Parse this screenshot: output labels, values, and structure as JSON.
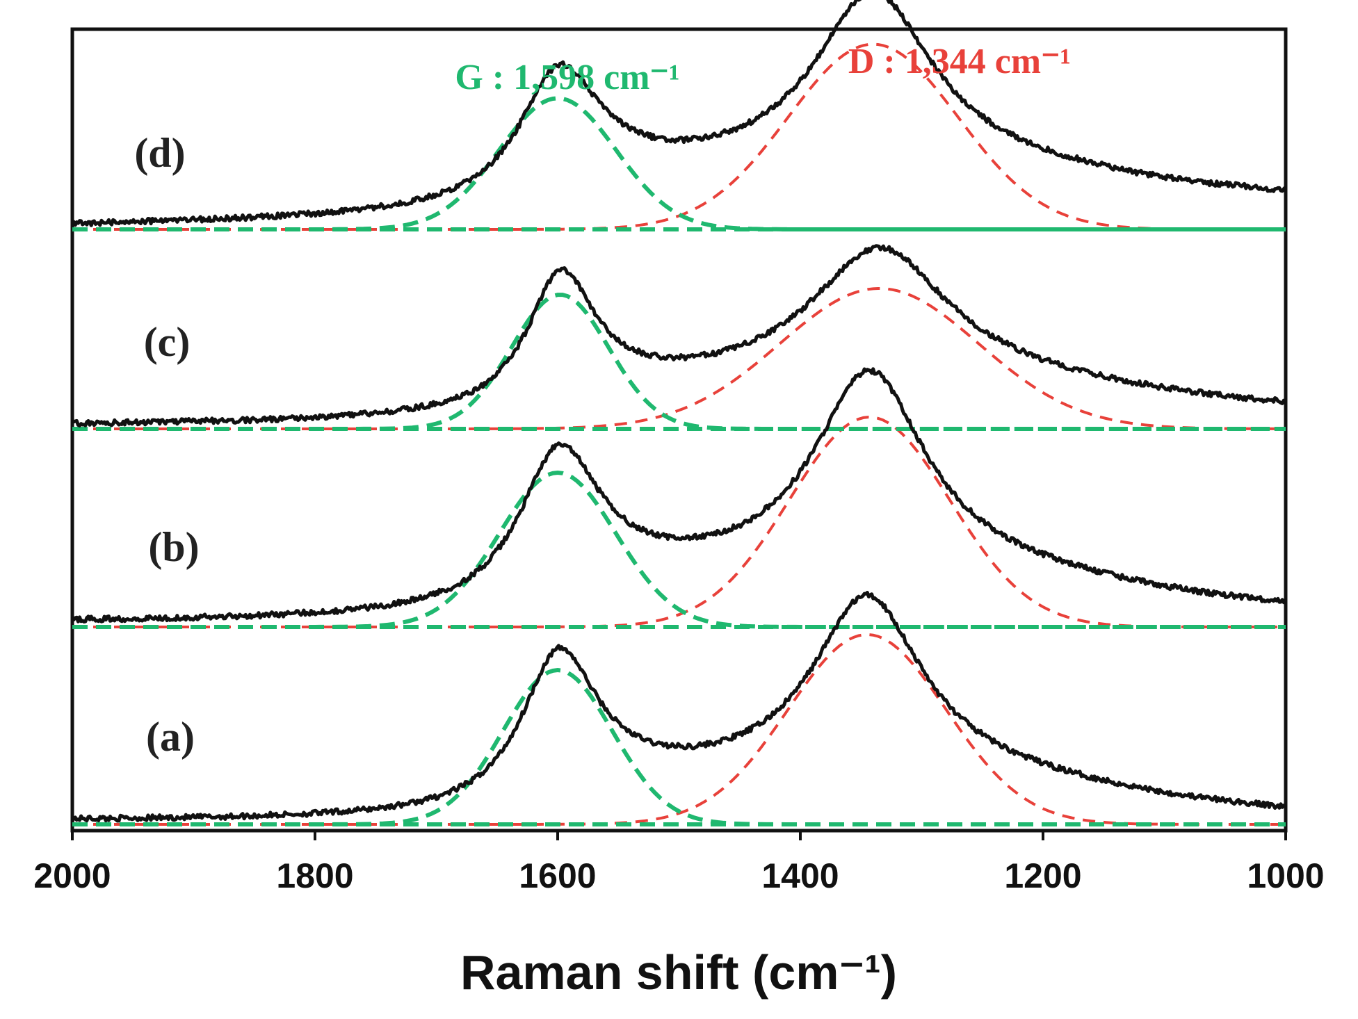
{
  "chart_data": {
    "type": "line",
    "xlabel": "Raman shift (cm⁻¹)",
    "xlim": [
      2000,
      1000
    ],
    "x_ticks": [
      2000,
      1800,
      1600,
      1400,
      1200,
      1000
    ],
    "x_tick_labels": [
      "2000",
      "1800",
      "1600",
      "1400",
      "1200",
      "1000"
    ],
    "y_axis": "stacked offset spectra, arbitrary intensity (no tick labels)",
    "grid": false,
    "colors": {
      "spectrum": "#111111",
      "g_fit": "#1fb86f",
      "d_fit": "#e8413a"
    },
    "annotations": [
      {
        "name": "g-band",
        "text": "G : 1,598 cm⁻¹",
        "color": "#1fb86f",
        "x": 1598
      },
      {
        "name": "d-band",
        "text": "D : 1,344 cm⁻¹",
        "color": "#e8413a",
        "x": 1344
      }
    ],
    "series": [
      {
        "label": "(a)",
        "baseline_start": 0.02,
        "baseline_end": 0.01,
        "G": {
          "center": 1600,
          "width": 45,
          "amp": 1.0
        },
        "D": {
          "center": 1345,
          "width": 65,
          "amp": 1.23
        },
        "tail": {
          "center": 1250,
          "width": 210,
          "amp": 0.26
        },
        "valley_level": 0.42
      },
      {
        "label": "(b)",
        "baseline_start": 0.03,
        "baseline_end": 0.04,
        "G": {
          "center": 1600,
          "width": 48,
          "amp": 1.0
        },
        "D": {
          "center": 1343,
          "width": 66,
          "amp": 1.36
        },
        "tail": {
          "center": 1250,
          "width": 220,
          "amp": 0.3
        },
        "valley_level": 0.44
      },
      {
        "label": "(c)",
        "baseline_start": 0.02,
        "baseline_end": 0.05,
        "G": {
          "center": 1598,
          "width": 40,
          "amp": 0.87
        },
        "D": {
          "center": 1335,
          "width": 82,
          "amp": 0.91
        },
        "tail": {
          "center": 1250,
          "width": 230,
          "amp": 0.3
        },
        "valley_level": 0.3
      },
      {
        "label": "(d)",
        "baseline_start": 0.02,
        "baseline_end": 0.12,
        "G": {
          "center": 1600,
          "width": 48,
          "amp": 0.85
        },
        "D": {
          "center": 1340,
          "width": 70,
          "amp": 1.2
        },
        "tail": {
          "center": 1250,
          "width": 250,
          "amp": 0.3
        },
        "valley_level": 0.4
      }
    ]
  }
}
